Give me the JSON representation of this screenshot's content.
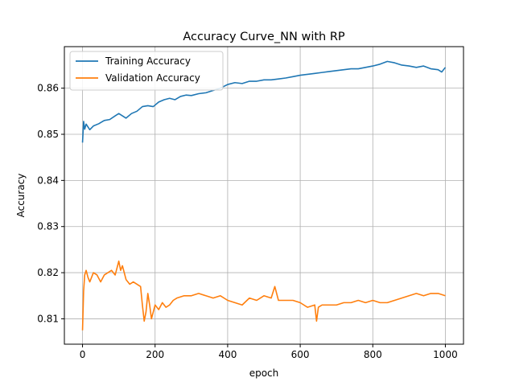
{
  "chart_data": {
    "type": "line",
    "title": "Accuracy Curve_NN with RP",
    "xlabel": "epoch",
    "ylabel": "Accuracy",
    "xlim": [
      -50,
      1050
    ],
    "ylim": [
      0.8045,
      0.869
    ],
    "xticks": [
      0,
      200,
      400,
      600,
      800,
      1000
    ],
    "xtick_labels": [
      "0",
      "200",
      "400",
      "600",
      "800",
      "1000"
    ],
    "yticks": [
      0.81,
      0.82,
      0.83,
      0.84,
      0.85,
      0.86
    ],
    "ytick_labels": [
      "0.81",
      "0.82",
      "0.83",
      "0.84",
      "0.85",
      "0.86"
    ],
    "grid": true,
    "legend_position": "upper-left",
    "series": [
      {
        "name": "Training Accuracy",
        "color": "#1f77b4",
        "x": [
          0,
          3,
          6,
          10,
          20,
          30,
          45,
          60,
          75,
          90,
          100,
          110,
          120,
          135,
          150,
          165,
          180,
          195,
          210,
          225,
          240,
          255,
          270,
          285,
          300,
          320,
          340,
          360,
          380,
          400,
          420,
          440,
          460,
          480,
          500,
          520,
          540,
          560,
          580,
          600,
          620,
          640,
          660,
          680,
          700,
          720,
          740,
          760,
          780,
          800,
          820,
          840,
          860,
          880,
          900,
          920,
          940,
          960,
          980,
          990,
          1000
        ],
        "y": [
          0.8482,
          0.8528,
          0.8511,
          0.8522,
          0.851,
          0.8518,
          0.8523,
          0.853,
          0.8532,
          0.854,
          0.8545,
          0.854,
          0.8535,
          0.8545,
          0.855,
          0.856,
          0.8562,
          0.856,
          0.857,
          0.8575,
          0.8578,
          0.8575,
          0.8582,
          0.8585,
          0.8584,
          0.8588,
          0.859,
          0.8595,
          0.86,
          0.8608,
          0.8612,
          0.861,
          0.8615,
          0.8615,
          0.8618,
          0.8618,
          0.862,
          0.8622,
          0.8625,
          0.8628,
          0.863,
          0.8632,
          0.8634,
          0.8636,
          0.8638,
          0.864,
          0.8642,
          0.8642,
          0.8645,
          0.8648,
          0.8652,
          0.8658,
          0.8655,
          0.865,
          0.8648,
          0.8645,
          0.8648,
          0.8642,
          0.864,
          0.8635,
          0.8645
        ]
      },
      {
        "name": "Validation Accuracy",
        "color": "#ff7f0e",
        "x": [
          0,
          3,
          6,
          10,
          15,
          20,
          30,
          40,
          50,
          60,
          70,
          80,
          90,
          100,
          105,
          110,
          120,
          130,
          140,
          150,
          160,
          165,
          170,
          175,
          180,
          185,
          190,
          200,
          210,
          220,
          230,
          240,
          250,
          260,
          280,
          300,
          320,
          340,
          360,
          380,
          400,
          420,
          440,
          460,
          480,
          500,
          520,
          530,
          540,
          560,
          580,
          600,
          620,
          640,
          645,
          650,
          660,
          680,
          700,
          720,
          740,
          760,
          780,
          800,
          820,
          840,
          860,
          880,
          900,
          920,
          940,
          960,
          980,
          1000
        ],
        "y": [
          0.8075,
          0.816,
          0.8195,
          0.8205,
          0.819,
          0.818,
          0.82,
          0.8195,
          0.818,
          0.8195,
          0.82,
          0.8205,
          0.8195,
          0.8225,
          0.8205,
          0.8215,
          0.8185,
          0.8175,
          0.818,
          0.8175,
          0.817,
          0.813,
          0.8095,
          0.8115,
          0.8155,
          0.813,
          0.81,
          0.813,
          0.812,
          0.8135,
          0.8125,
          0.813,
          0.814,
          0.8145,
          0.815,
          0.815,
          0.8155,
          0.815,
          0.8145,
          0.815,
          0.814,
          0.8135,
          0.813,
          0.8145,
          0.814,
          0.815,
          0.8145,
          0.817,
          0.814,
          0.814,
          0.814,
          0.8135,
          0.8125,
          0.813,
          0.8095,
          0.8125,
          0.813,
          0.813,
          0.813,
          0.8135,
          0.8135,
          0.814,
          0.8135,
          0.814,
          0.8135,
          0.8135,
          0.814,
          0.8145,
          0.815,
          0.8155,
          0.815,
          0.8155,
          0.8155,
          0.815
        ]
      }
    ]
  }
}
